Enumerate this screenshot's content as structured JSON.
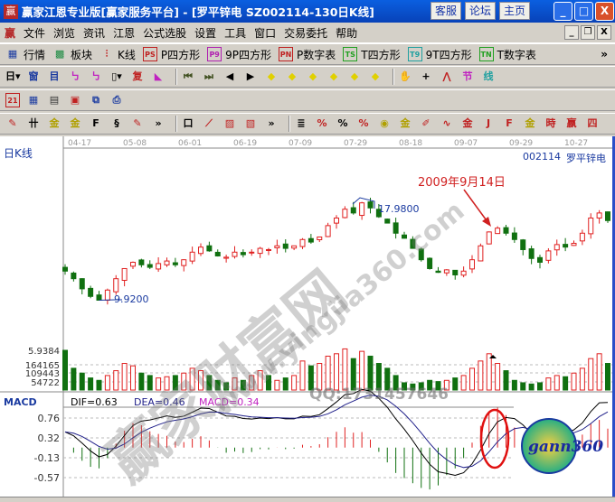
{
  "window": {
    "title": "赢家江恩专业版[赢家服务平台] - [罗平锌电   SZ002114-130日K线]",
    "buttons": [
      "客服",
      "论坛",
      "主页"
    ],
    "controls": [
      "_",
      "□",
      "X"
    ]
  },
  "menu": {
    "logo": "赢",
    "items": [
      "文件",
      "浏览",
      "资讯",
      "江恩",
      "公式选股",
      "设置",
      "工具",
      "窗口",
      "交易委托",
      "帮助"
    ]
  },
  "toolbar1": [
    {
      "icon": "grid",
      "glyph": "▦",
      "label": "行情",
      "color": "#1a3aa0"
    },
    {
      "icon": "blocks",
      "glyph": "▩",
      "label": "板块",
      "color": "#1a8a40"
    },
    {
      "icon": "candles",
      "glyph": "⫶",
      "label": "K线",
      "color": "#c02020"
    },
    {
      "icon": "ps",
      "glyph": "PS",
      "label": "P四方形",
      "color": "#c02020"
    },
    {
      "icon": "p9",
      "glyph": "P9",
      "label": "9P四方形",
      "color": "#b020b0"
    },
    {
      "icon": "pn",
      "glyph": "PN",
      "label": "P数字表",
      "color": "#c02020"
    },
    {
      "icon": "ts",
      "glyph": "TS",
      "label": "T四方形",
      "color": "#20a020"
    },
    {
      "icon": "t9",
      "glyph": "T9",
      "label": "9T四方形",
      "color": "#20a0a0"
    },
    {
      "icon": "tn",
      "glyph": "TN",
      "label": "T数字表",
      "color": "#20a020"
    }
  ],
  "toolbar1_more": "»",
  "toolbar2": [
    {
      "icon": "period",
      "glyph": "日▾",
      "color": "#000"
    },
    {
      "icon": "window",
      "glyph": "窗",
      "color": "#1a3aa0"
    },
    {
      "icon": "list",
      "glyph": "目",
      "color": "#1a3aa0"
    },
    {
      "icon": "wave3",
      "glyph": "㇉",
      "color": "#c020c0"
    },
    {
      "icon": "wave9",
      "glyph": "㇉",
      "color": "#c020c0"
    },
    {
      "icon": "candle",
      "glyph": "▯▾",
      "color": "#000"
    },
    {
      "icon": "restore",
      "glyph": "复",
      "color": "#c02020"
    },
    {
      "icon": "flag",
      "glyph": "◣",
      "color": "#c020c0"
    },
    {
      "icon": "first",
      "glyph": "⏮",
      "color": "#405020"
    },
    {
      "icon": "last",
      "glyph": "⏭",
      "color": "#405020"
    },
    {
      "icon": "left",
      "glyph": "◀",
      "color": "#000"
    },
    {
      "icon": "right",
      "glyph": "▶",
      "color": "#000"
    },
    {
      "icon": "diamond-left",
      "glyph": "◆",
      "color": "#e0d000"
    },
    {
      "icon": "diamond-right",
      "glyph": "◆",
      "color": "#e0d000"
    },
    {
      "icon": "diamond-h",
      "glyph": "◆",
      "color": "#e0d000"
    },
    {
      "icon": "diamond-x",
      "glyph": "◆",
      "color": "#e0d000"
    },
    {
      "icon": "diamond-in",
      "glyph": "◆",
      "color": "#e0d000"
    },
    {
      "icon": "diamond-v",
      "glyph": "◆",
      "color": "#e0d000"
    },
    {
      "icon": "hand",
      "glyph": "✋",
      "color": "#000"
    },
    {
      "icon": "crosshair",
      "glyph": "+",
      "color": "#000"
    },
    {
      "icon": "zigzag",
      "glyph": "⋀",
      "color": "#c02020"
    },
    {
      "icon": "jie",
      "glyph": "节",
      "color": "#c020c0"
    },
    {
      "icon": "xian",
      "glyph": "线",
      "color": "#20a0a0"
    }
  ],
  "toolbar3": [
    {
      "icon": "calendar",
      "glyph": "21",
      "color": "#c02020"
    },
    {
      "icon": "calculator",
      "glyph": "▦",
      "color": "#1a3aa0"
    },
    {
      "icon": "notes",
      "glyph": "▤",
      "color": "#333"
    },
    {
      "icon": "save",
      "glyph": "▣",
      "color": "#c02020"
    },
    {
      "icon": "network",
      "glyph": "⧉",
      "color": "#1a3aa0"
    },
    {
      "icon": "print",
      "glyph": "⎙",
      "color": "#1a3aa0"
    }
  ],
  "toolbar4": [
    {
      "icon": "pen",
      "glyph": "✎",
      "color": "#c02020"
    },
    {
      "icon": "grid-lines",
      "glyph": "卄",
      "color": "#000"
    },
    {
      "icon": "gold-grid",
      "glyph": "金",
      "color": "#b0a000"
    },
    {
      "icon": "gold-grid2",
      "glyph": "金",
      "color": "#b0a000"
    },
    {
      "icon": "fib",
      "glyph": "F",
      "color": "#000"
    },
    {
      "icon": "spiral",
      "glyph": "§",
      "color": "#000"
    },
    {
      "icon": "pen2",
      "glyph": "✎",
      "color": "#c02020"
    },
    {
      "icon": "more",
      "glyph": "»",
      "color": "#000"
    },
    {
      "icon": "box",
      "glyph": "口",
      "color": "#000"
    },
    {
      "icon": "fan",
      "glyph": "⟋",
      "color": "#c02020"
    },
    {
      "icon": "square",
      "glyph": "▨",
      "color": "#c02020"
    },
    {
      "icon": "square2",
      "glyph": "▧",
      "color": "#c02020"
    },
    {
      "icon": "more2",
      "glyph": "»",
      "color": "#000"
    },
    {
      "icon": "ruler",
      "glyph": "≣",
      "color": "#000"
    },
    {
      "icon": "pct-line",
      "glyph": "%",
      "color": "#c02020"
    },
    {
      "icon": "pct",
      "glyph": "%",
      "color": "#000"
    },
    {
      "icon": "pct-lines",
      "glyph": "%",
      "color": "#c02020"
    },
    {
      "icon": "gold-circle",
      "glyph": "◉",
      "color": "#b0a000"
    },
    {
      "icon": "gold-lines",
      "glyph": "金",
      "color": "#b0a000"
    },
    {
      "icon": "pencil",
      "glyph": "✐",
      "color": "#c02020"
    },
    {
      "icon": "wave",
      "glyph": "∿",
      "color": "#c02020"
    },
    {
      "icon": "gold",
      "glyph": "金",
      "color": "#c02020"
    },
    {
      "icon": "j-fan",
      "glyph": "J",
      "color": "#c02020"
    },
    {
      "icon": "f-fan",
      "glyph": "F",
      "color": "#c02020"
    },
    {
      "icon": "gold-fan",
      "glyph": "金",
      "color": "#b0a000"
    },
    {
      "icon": "time-fan",
      "glyph": "時",
      "color": "#c02020"
    },
    {
      "icon": "gann-fan",
      "glyph": "嬴",
      "color": "#c02020"
    },
    {
      "icon": "four-fan",
      "glyph": "四",
      "color": "#c02020"
    }
  ],
  "chart": {
    "period_label": "日K线",
    "stock_code": "002114",
    "stock_name": "罗平锌电",
    "dates": [
      "04-17",
      "05-08",
      "06-01",
      "06-19",
      "07-09",
      "07-29",
      "08-18",
      "09-07",
      "09-29",
      "10-27"
    ],
    "low_label": "9.9200",
    "high_label": "17.9800",
    "annotation": "2009年9月14日",
    "volume_labels": [
      "5.9384",
      "164165",
      "109443",
      "54722"
    ],
    "macd": {
      "title": "MACD",
      "dif": "DIF=0.63",
      "dea": "DEA=0.46",
      "macd": "MACD=0.34",
      "ticks": [
        "0.76",
        "0.32",
        "-0.13",
        "-0.57"
      ]
    },
    "colors": {
      "up": "#e02020",
      "down": "#107010",
      "axis": "#1a3aa0",
      "dif": "#000000",
      "dea": "#20208a",
      "macd_label": "#c020c0"
    }
  },
  "watermark": {
    "brand": "赢家财富网",
    "url": "www.yingjia360.com",
    "qq": "QQ:1731457646",
    "logo": "gann360"
  },
  "chart_data": {
    "type": "candlestick",
    "closes": [
      12.4,
      11.8,
      11.0,
      10.4,
      10.1,
      10.9,
      11.8,
      12.6,
      13.1,
      12.9,
      12.7,
      13.0,
      13.2,
      12.9,
      13.3,
      13.9,
      14.3,
      14.0,
      13.6,
      13.5,
      13.9,
      13.7,
      13.9,
      14.2,
      14.1,
      14.4,
      14.2,
      14.4,
      14.9,
      14.7,
      15.1,
      16.0,
      16.6,
      17.3,
      17.0,
      17.8,
      17.4,
      16.7,
      16.2,
      15.4,
      15.0,
      14.2,
      13.3,
      12.6,
      12.3,
      12.5,
      12.1,
      12.4,
      13.3,
      14.4,
      15.5,
      15.8,
      15.4,
      14.9,
      14.1,
      13.4,
      13.1,
      14.0,
      14.5,
      14.3,
      14.6,
      15.4,
      16.6,
      17.0,
      16.4
    ],
    "volumes": [
      164165,
      90000,
      70000,
      50000,
      40000,
      60000,
      80000,
      110000,
      100000,
      70000,
      60000,
      50000,
      55000,
      60000,
      70000,
      90000,
      80000,
      60000,
      40000,
      30000,
      50000,
      40000,
      60000,
      80000,
      60000,
      40000,
      50000,
      60000,
      120000,
      100000,
      110000,
      140000,
      150000,
      170000,
      130000,
      160000,
      140000,
      110000,
      90000,
      60000,
      30000,
      25000,
      30000,
      40000,
      35000,
      40000,
      50000,
      60000,
      90000,
      120000,
      150000,
      110000,
      80000,
      40000,
      30000,
      25000,
      30000,
      50000,
      60000,
      55000,
      70000,
      90000,
      130000,
      150000,
      110000
    ]
  }
}
